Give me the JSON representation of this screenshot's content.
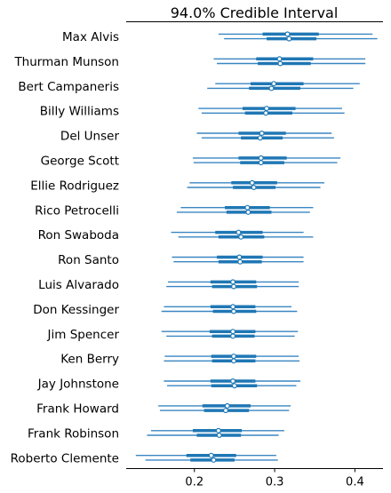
{
  "chart_data": {
    "type": "forest",
    "title": "94.0% Credible Interval",
    "xlim": [
      0.115,
      0.435
    ],
    "xticks": [
      0.2,
      0.3,
      0.4
    ],
    "xtick_labels": [
      "0.2",
      "0.3",
      "0.4"
    ],
    "series": [
      {
        "name": "Max Alvis",
        "chains": [
          {
            "hdi": [
              0.23,
              0.422
            ],
            "iqr": [
              0.285,
              0.355
            ],
            "median": 0.316
          },
          {
            "hdi": [
              0.237,
              0.428
            ],
            "iqr": [
              0.29,
              0.352
            ],
            "median": 0.318
          }
        ]
      },
      {
        "name": "Thurman Munson",
        "chains": [
          {
            "hdi": [
              0.224,
              0.413
            ],
            "iqr": [
              0.277,
              0.348
            ],
            "median": 0.306
          },
          {
            "hdi": [
              0.228,
              0.413
            ],
            "iqr": [
              0.279,
              0.345
            ],
            "median": 0.307
          }
        ]
      },
      {
        "name": "Bert Campaneris",
        "chains": [
          {
            "hdi": [
              0.226,
              0.406
            ],
            "iqr": [
              0.27,
              0.336
            ],
            "median": 0.299
          },
          {
            "hdi": [
              0.216,
              0.398
            ],
            "iqr": [
              0.268,
              0.332
            ],
            "median": 0.296
          }
        ]
      },
      {
        "name": "Billy Williams",
        "chains": [
          {
            "hdi": [
              0.205,
              0.384
            ],
            "iqr": [
              0.26,
              0.326
            ],
            "median": 0.29
          },
          {
            "hdi": [
              0.209,
              0.387
            ],
            "iqr": [
              0.263,
              0.322
            ],
            "median": 0.289
          }
        ]
      },
      {
        "name": "Del Unser",
        "chains": [
          {
            "hdi": [
              0.203,
              0.371
            ],
            "iqr": [
              0.255,
              0.314
            ],
            "median": 0.284
          },
          {
            "hdi": [
              0.209,
              0.374
            ],
            "iqr": [
              0.258,
              0.31
            ],
            "median": 0.282
          }
        ]
      },
      {
        "name": "George Scott",
        "chains": [
          {
            "hdi": [
              0.198,
              0.382
            ],
            "iqr": [
              0.255,
              0.315
            ],
            "median": 0.283
          },
          {
            "hdi": [
              0.199,
              0.378
            ],
            "iqr": [
              0.257,
              0.312
            ],
            "median": 0.283
          }
        ]
      },
      {
        "name": "Ellie Rodriguez",
        "chains": [
          {
            "hdi": [
              0.194,
              0.362
            ],
            "iqr": [
              0.246,
              0.303
            ],
            "median": 0.272
          },
          {
            "hdi": [
              0.191,
              0.357
            ],
            "iqr": [
              0.248,
              0.301
            ],
            "median": 0.274
          }
        ]
      },
      {
        "name": "Rico Petrocelli",
        "chains": [
          {
            "hdi": [
              0.183,
              0.348
            ],
            "iqr": [
              0.238,
              0.294
            ],
            "median": 0.266
          },
          {
            "hdi": [
              0.178,
              0.344
            ],
            "iqr": [
              0.24,
              0.296
            ],
            "median": 0.267
          }
        ]
      },
      {
        "name": "Ron Swaboda",
        "chains": [
          {
            "hdi": [
              0.171,
              0.336
            ],
            "iqr": [
              0.226,
              0.285
            ],
            "median": 0.255
          },
          {
            "hdi": [
              0.18,
              0.348
            ],
            "iqr": [
              0.23,
              0.287
            ],
            "median": 0.258
          }
        ]
      },
      {
        "name": "Ron Santo",
        "chains": [
          {
            "hdi": [
              0.172,
              0.336
            ],
            "iqr": [
              0.228,
              0.285
            ],
            "median": 0.256
          },
          {
            "hdi": [
              0.174,
              0.336
            ],
            "iqr": [
              0.23,
              0.284
            ],
            "median": 0.257
          }
        ]
      },
      {
        "name": "Luis Alvarado",
        "chains": [
          {
            "hdi": [
              0.167,
              0.33
            ],
            "iqr": [
              0.22,
              0.277
            ],
            "median": 0.248
          },
          {
            "hdi": [
              0.165,
              0.33
            ],
            "iqr": [
              0.222,
              0.278
            ],
            "median": 0.249
          }
        ]
      },
      {
        "name": "Don Kessinger",
        "chains": [
          {
            "hdi": [
              0.162,
              0.321
            ],
            "iqr": [
              0.22,
              0.276
            ],
            "median": 0.248
          },
          {
            "hdi": [
              0.159,
              0.328
            ],
            "iqr": [
              0.223,
              0.277
            ],
            "median": 0.249
          }
        ]
      },
      {
        "name": "Jim Spencer",
        "chains": [
          {
            "hdi": [
              0.159,
              0.329
            ],
            "iqr": [
              0.219,
              0.276
            ],
            "median": 0.248
          },
          {
            "hdi": [
              0.165,
              0.325
            ],
            "iqr": [
              0.222,
              0.275
            ],
            "median": 0.248
          }
        ]
      },
      {
        "name": "Ken Berry",
        "chains": [
          {
            "hdi": [
              0.163,
              0.33
            ],
            "iqr": [
              0.221,
              0.277
            ],
            "median": 0.249
          },
          {
            "hdi": [
              0.162,
              0.331
            ],
            "iqr": [
              0.222,
              0.276
            ],
            "median": 0.249
          }
        ]
      },
      {
        "name": "Jay Johnstone",
        "chains": [
          {
            "hdi": [
              0.162,
              0.332
            ],
            "iqr": [
              0.22,
              0.276
            ],
            "median": 0.248
          },
          {
            "hdi": [
              0.166,
              0.327
            ],
            "iqr": [
              0.221,
              0.278
            ],
            "median": 0.25
          }
        ]
      },
      {
        "name": "Frank Howard",
        "chains": [
          {
            "hdi": [
              0.155,
              0.32
            ],
            "iqr": [
              0.21,
              0.27
            ],
            "median": 0.241
          },
          {
            "hdi": [
              0.157,
              0.318
            ],
            "iqr": [
              0.212,
              0.268
            ],
            "median": 0.239
          }
        ]
      },
      {
        "name": "Frank Robinson",
        "chains": [
          {
            "hdi": [
              0.146,
              0.312
            ],
            "iqr": [
              0.198,
              0.259
            ],
            "median": 0.23
          },
          {
            "hdi": [
              0.141,
              0.305
            ],
            "iqr": [
              0.203,
              0.258
            ],
            "median": 0.231
          }
        ]
      },
      {
        "name": "Roberto Clemente",
        "chains": [
          {
            "hdi": [
              0.127,
              0.302
            ],
            "iqr": [
              0.19,
              0.252
            ],
            "median": 0.221
          },
          {
            "hdi": [
              0.139,
              0.304
            ],
            "iqr": [
              0.195,
              0.25
            ],
            "median": 0.224
          }
        ]
      }
    ],
    "grid": false,
    "legend": "none"
  },
  "colors": {
    "interval": "#3a86c2",
    "iqr": "#1f77b4",
    "median_fill": "#ffffff"
  }
}
